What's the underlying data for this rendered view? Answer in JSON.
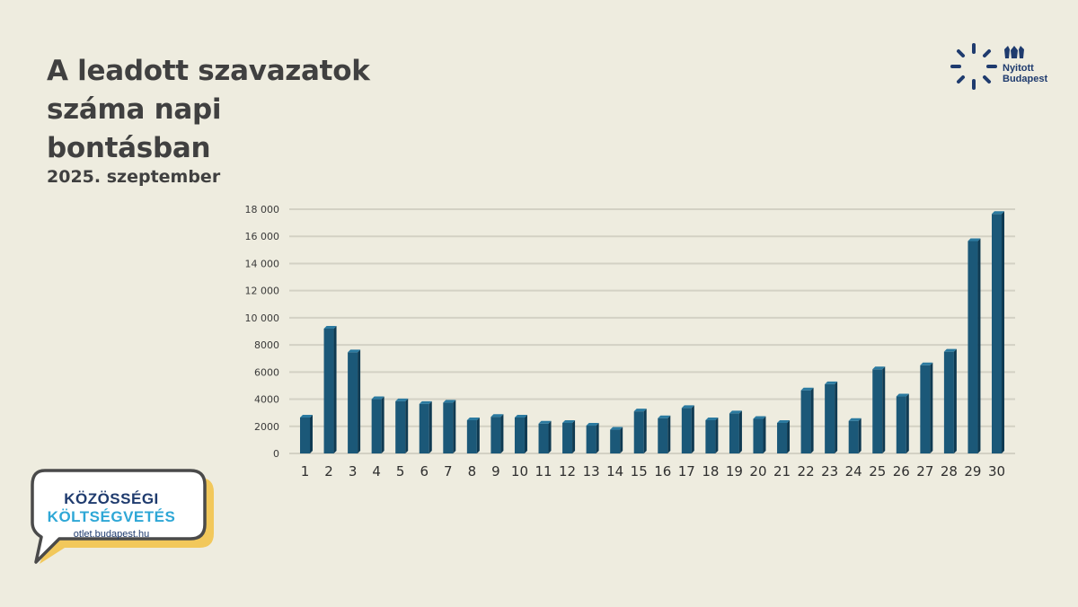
{
  "title_lines": [
    "A leadott szavazatok",
    "száma napi",
    "bontásban"
  ],
  "subtitle": "2025. szeptember",
  "logo": {
    "line1": "Nyitott",
    "line2": "Budapest",
    "icon": "burst-icon"
  },
  "badge": {
    "line1": "KÖZÖSSÉGI",
    "line2": "KÖLTSÉGVETÉS",
    "url": "otlet.budapest.hu",
    "icon": "speech-bubble-icon"
  },
  "colors": {
    "background": "#eeecdf",
    "bar": "#1b5878",
    "bar_dark": "#0f3a52",
    "title": "#404040",
    "navy": "#1f3b6e",
    "cyan": "#2ea7d6",
    "yellow": "#f2c85b"
  },
  "chart_data": {
    "type": "bar",
    "categories": [
      "1",
      "2",
      "3",
      "4",
      "5",
      "6",
      "7",
      "8",
      "9",
      "10",
      "11",
      "12",
      "13",
      "14",
      "15",
      "16",
      "17",
      "18",
      "19",
      "20",
      "21",
      "22",
      "23",
      "24",
      "25",
      "26",
      "27",
      "28",
      "29",
      "30"
    ],
    "values": [
      2650,
      9200,
      7450,
      4000,
      3850,
      3650,
      3750,
      2450,
      2700,
      2650,
      2200,
      2250,
      2050,
      1750,
      3100,
      2600,
      3350,
      2450,
      2950,
      2550,
      2250,
      4650,
      5100,
      2400,
      6200,
      4200,
      6500,
      7500,
      15650,
      17650
    ],
    "yticks": [
      "0",
      "2000",
      "4000",
      "6000",
      "8000",
      "10 000",
      "12 000",
      "14 000",
      "16 000",
      "18 000"
    ],
    "ylim": [
      0,
      18000
    ],
    "grid": true,
    "legend": "none"
  }
}
